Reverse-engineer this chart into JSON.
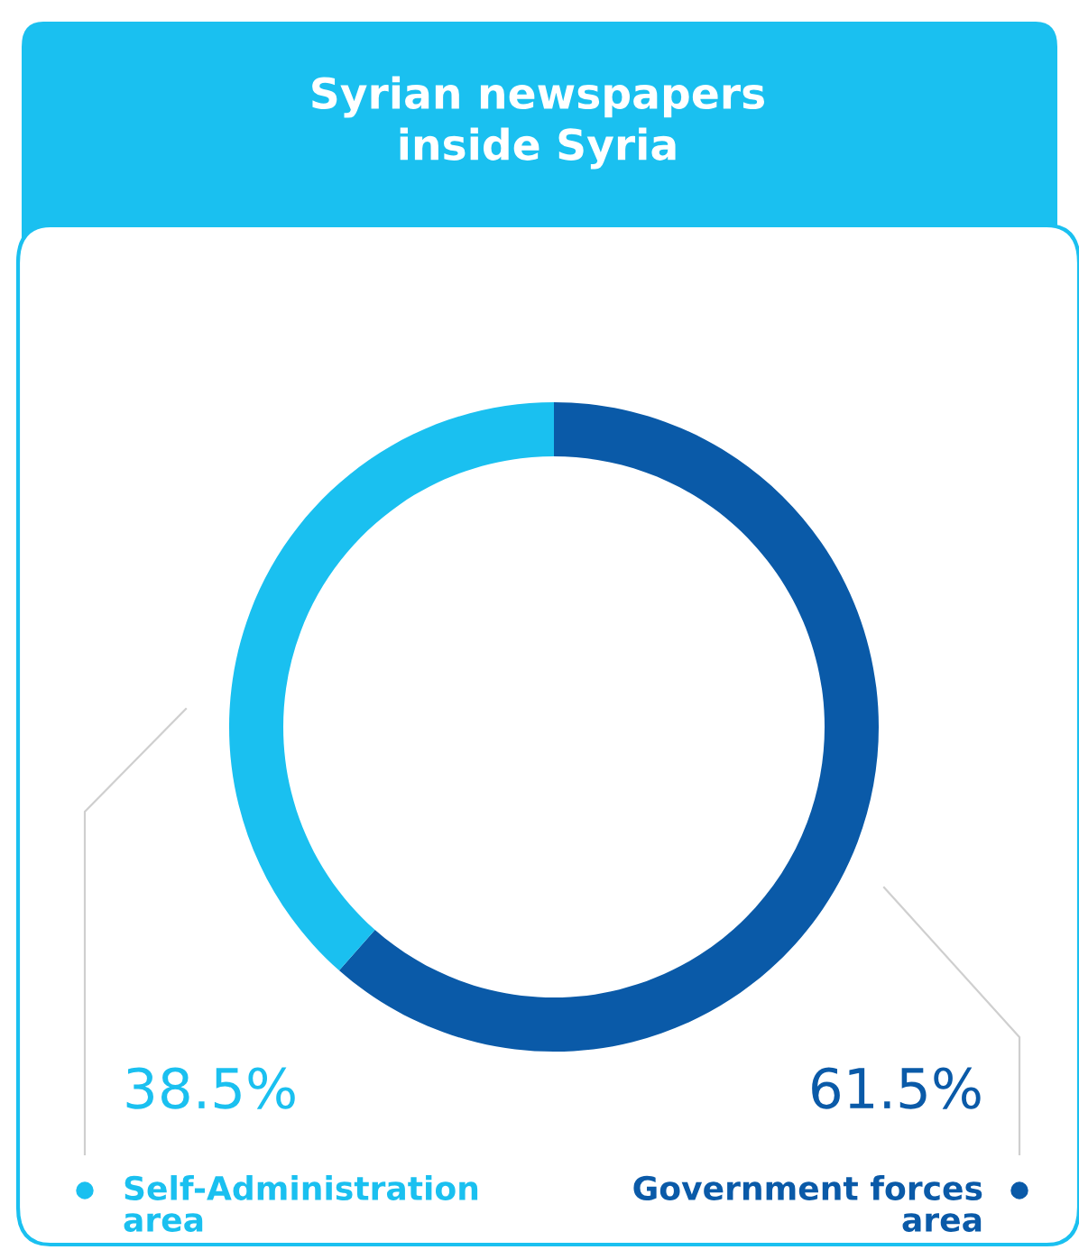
{
  "chart_data": {
    "type": "donut",
    "title": "Syrian newspapers\ninside Syria",
    "categories": [
      "Government forces area",
      "Self-Administration area"
    ],
    "values": [
      61.5,
      38.5
    ],
    "colors": [
      "#0a5aa8",
      "#1ac0f0"
    ],
    "value_labels": [
      "61.5%",
      "38.5%"
    ]
  }
}
